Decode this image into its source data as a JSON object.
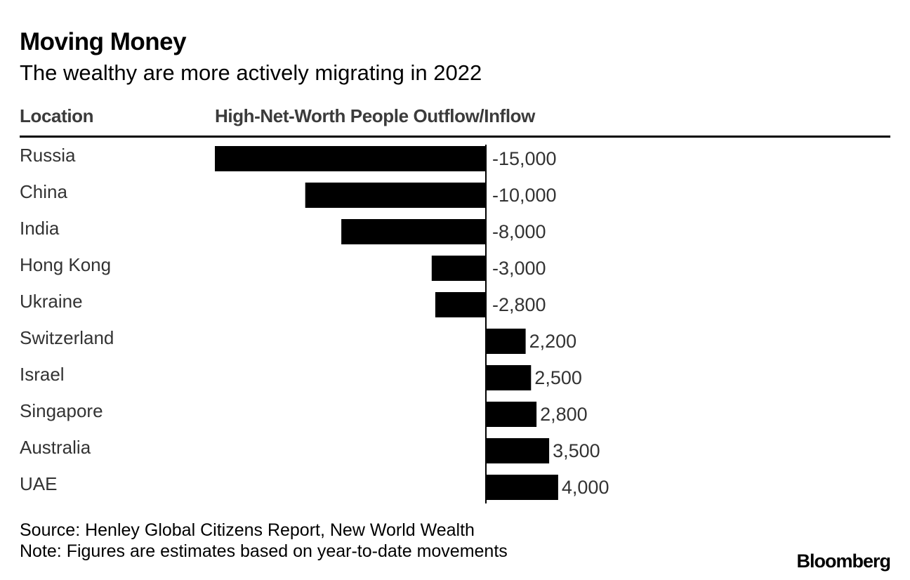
{
  "title": "Moving Money",
  "subtitle": "The wealthy are more actively migrating in 2022",
  "columns": {
    "location": "Location",
    "value": "High-Net-Worth People Outflow/Inflow"
  },
  "source": "Source: Henley Global Citizens Report, New World Wealth",
  "note": "Note: Figures are estimates based on year-to-date movements",
  "brand": "Bloomberg",
  "colors": {
    "bar": "#000000",
    "text": "#333333",
    "background": "#ffffff"
  },
  "chart_data": {
    "type": "bar",
    "orientation": "horizontal",
    "title": "Moving Money",
    "subtitle": "The wealthy are more actively migrating in 2022",
    "xlabel": "High-Net-Worth People Outflow/Inflow",
    "ylabel": "Location",
    "categories": [
      "Russia",
      "China",
      "India",
      "Hong Kong",
      "Ukraine",
      "Switzerland",
      "Israel",
      "Singapore",
      "Australia",
      "UAE"
    ],
    "values": [
      -15000,
      -10000,
      -8000,
      -3000,
      -2800,
      2200,
      2500,
      2800,
      3500,
      4000
    ],
    "value_labels": [
      "-15,000",
      "-10,000",
      "-8,000",
      "-3,000",
      "-2,800",
      "2,200",
      "2,500",
      "2,800",
      "3,500",
      "4,000"
    ],
    "xlim": [
      -15000,
      4000
    ],
    "grid": false,
    "legend": "none"
  }
}
